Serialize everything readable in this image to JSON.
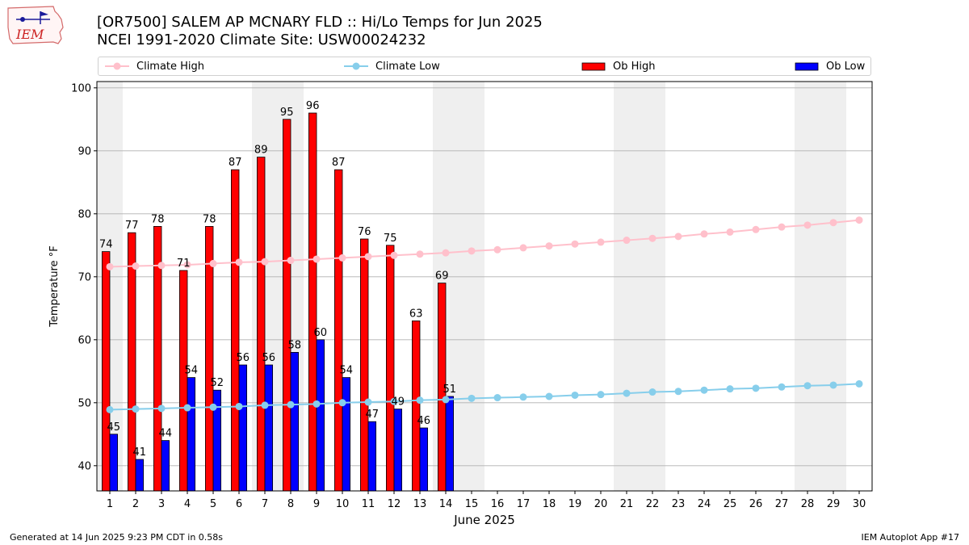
{
  "header": {
    "title_line1": "[OR7500] SALEM AP MCNARY FLD :: Hi/Lo Temps for Jun 2025",
    "title_line2": "NCEI 1991-2020 Climate Site: USW00024232",
    "logo_text": "IEM"
  },
  "footer": {
    "left": "Generated at 14 Jun 2025 9:23 PM CDT in 0.58s",
    "right": "IEM Autoplot App #17"
  },
  "colors": {
    "ob_high": "#ff0000",
    "ob_low": "#0000ff",
    "climate_high": "#ffc0cb",
    "climate_low": "#87ceeb",
    "weekend_shade": "#efefef",
    "grid": "#b0b0b0"
  },
  "chart_data": {
    "type": "bar",
    "xlabel": "June 2025",
    "ylabel": "Temperature °F",
    "ylim": [
      36,
      101
    ],
    "yticks": [
      40,
      50,
      60,
      70,
      80,
      90,
      100
    ],
    "grid": true,
    "legend_placement": "top",
    "categories": [
      "1",
      "2",
      "3",
      "4",
      "5",
      "6",
      "7",
      "8",
      "9",
      "10",
      "11",
      "12",
      "13",
      "14",
      "15",
      "16",
      "17",
      "18",
      "19",
      "20",
      "21",
      "22",
      "23",
      "24",
      "25",
      "26",
      "27",
      "28",
      "29",
      "30"
    ],
    "shaded_days": [
      1,
      7,
      8,
      14,
      15,
      21,
      22,
      28,
      29
    ],
    "series": [
      {
        "name": "Ob High",
        "kind": "bar",
        "values": [
          74,
          77,
          78,
          71,
          78,
          87,
          89,
          95,
          96,
          87,
          76,
          75,
          63,
          69,
          null,
          null,
          null,
          null,
          null,
          null,
          null,
          null,
          null,
          null,
          null,
          null,
          null,
          null,
          null,
          null
        ]
      },
      {
        "name": "Ob Low",
        "kind": "bar",
        "values": [
          45,
          41,
          44,
          54,
          52,
          56,
          56,
          58,
          60,
          54,
          47,
          49,
          46,
          51,
          null,
          null,
          null,
          null,
          null,
          null,
          null,
          null,
          null,
          null,
          null,
          null,
          null,
          null,
          null,
          null
        ]
      },
      {
        "name": "Climate High",
        "kind": "line",
        "values": [
          71.6,
          71.7,
          71.8,
          71.9,
          72.1,
          72.3,
          72.4,
          72.6,
          72.8,
          73.0,
          73.2,
          73.4,
          73.6,
          73.8,
          74.1,
          74.3,
          74.6,
          74.9,
          75.2,
          75.5,
          75.8,
          76.1,
          76.4,
          76.8,
          77.1,
          77.5,
          77.9,
          78.2,
          78.6,
          79.0
        ]
      },
      {
        "name": "Climate Low",
        "kind": "line",
        "values": [
          48.9,
          49.0,
          49.1,
          49.2,
          49.3,
          49.4,
          49.6,
          49.7,
          49.8,
          50.0,
          50.1,
          50.2,
          50.4,
          50.5,
          50.7,
          50.8,
          50.9,
          51.0,
          51.2,
          51.3,
          51.5,
          51.7,
          51.8,
          52.0,
          52.2,
          52.3,
          52.5,
          52.7,
          52.8,
          53.0
        ]
      }
    ]
  }
}
